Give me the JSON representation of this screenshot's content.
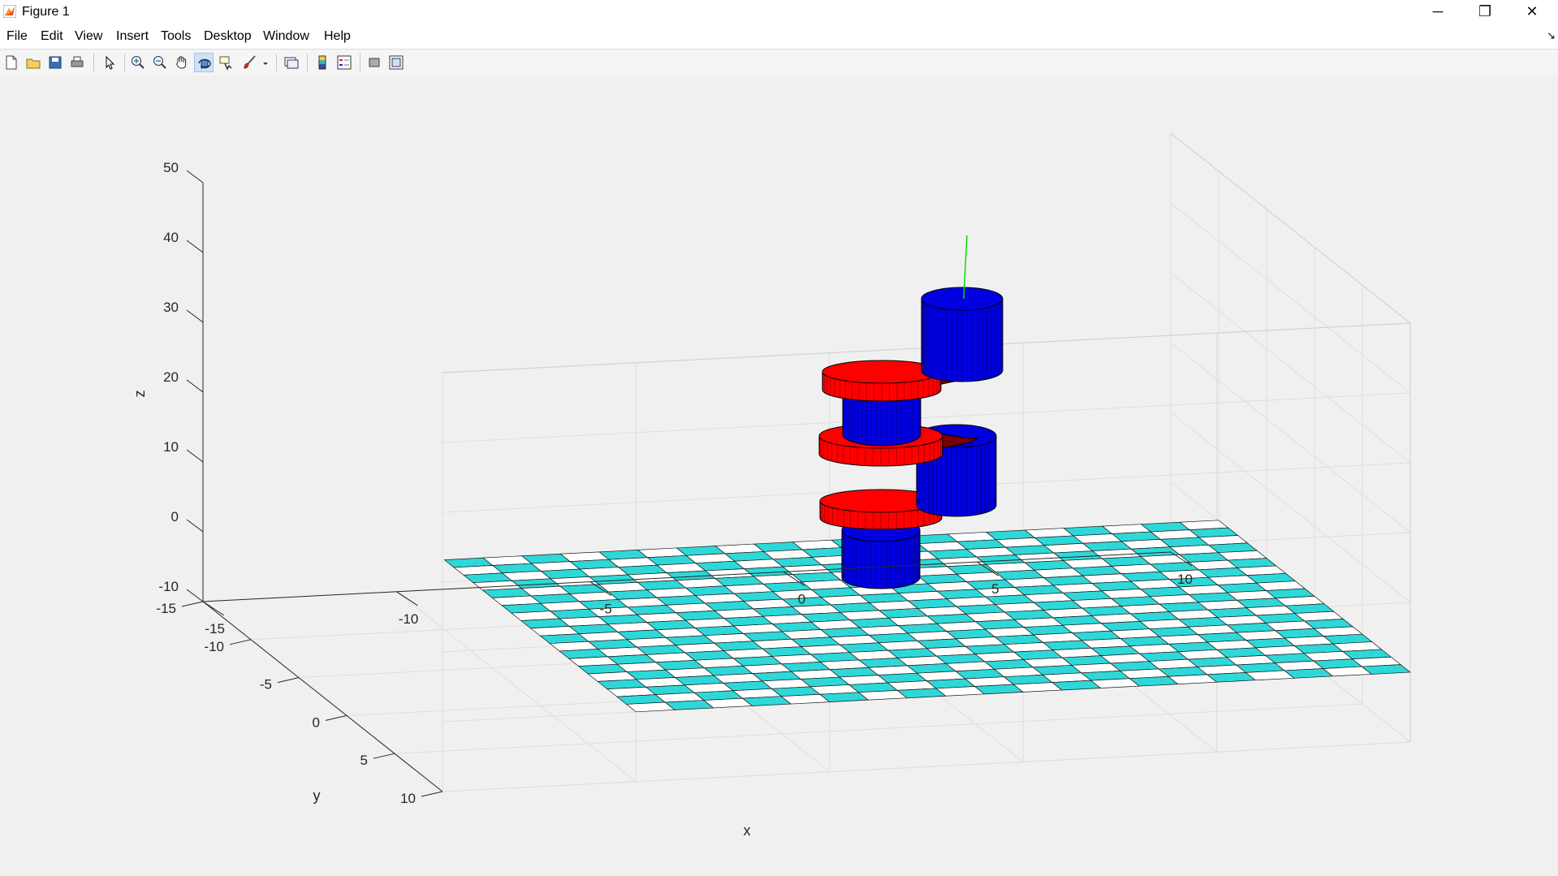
{
  "window": {
    "title": "Figure 1",
    "minimize": "─",
    "restore": "❐",
    "close": "✕"
  },
  "menu": {
    "items": [
      "File",
      "Edit",
      "View",
      "Insert",
      "Tools",
      "Desktop",
      "Window",
      "Help"
    ],
    "dock_arrow": "↘"
  },
  "toolbar": {
    "buttons": [
      "new-figure-icon",
      "open-file-icon",
      "save-icon",
      "print-icon",
      "edit-plot-icon",
      "zoom-in-icon",
      "zoom-out-icon",
      "pan-icon",
      "rotate-3d-icon",
      "data-cursor-icon",
      "brush-icon",
      "link-plot-icon",
      "insert-colorbar-icon",
      "insert-legend-icon",
      "hide-plot-tools-icon",
      "show-plot-tools-icon"
    ],
    "active": "rotate-3d-icon"
  },
  "colors": {
    "floor_cyan": "#2ed8d8",
    "joint_red": "#ff0000",
    "link_blue": "#0000e0",
    "end_effector_green": "#00e000",
    "grid": "#dedede",
    "axis": "#262626"
  },
  "axes": {
    "xlabel": "x",
    "ylabel": "y",
    "zlabel": "z",
    "x_ticks": [
      "-15",
      "-10",
      "-5",
      "0",
      "5",
      "10"
    ],
    "y_ticks": [
      "-15",
      "-10",
      "-5",
      "0",
      "5",
      "10"
    ],
    "z_ticks": [
      "-10",
      "0",
      "10",
      "20",
      "30",
      "40",
      "50"
    ],
    "xlim": [
      -15,
      10
    ],
    "ylim": [
      -15,
      10
    ],
    "zlim": [
      -10,
      50
    ],
    "grid": true,
    "view": "3d"
  }
}
